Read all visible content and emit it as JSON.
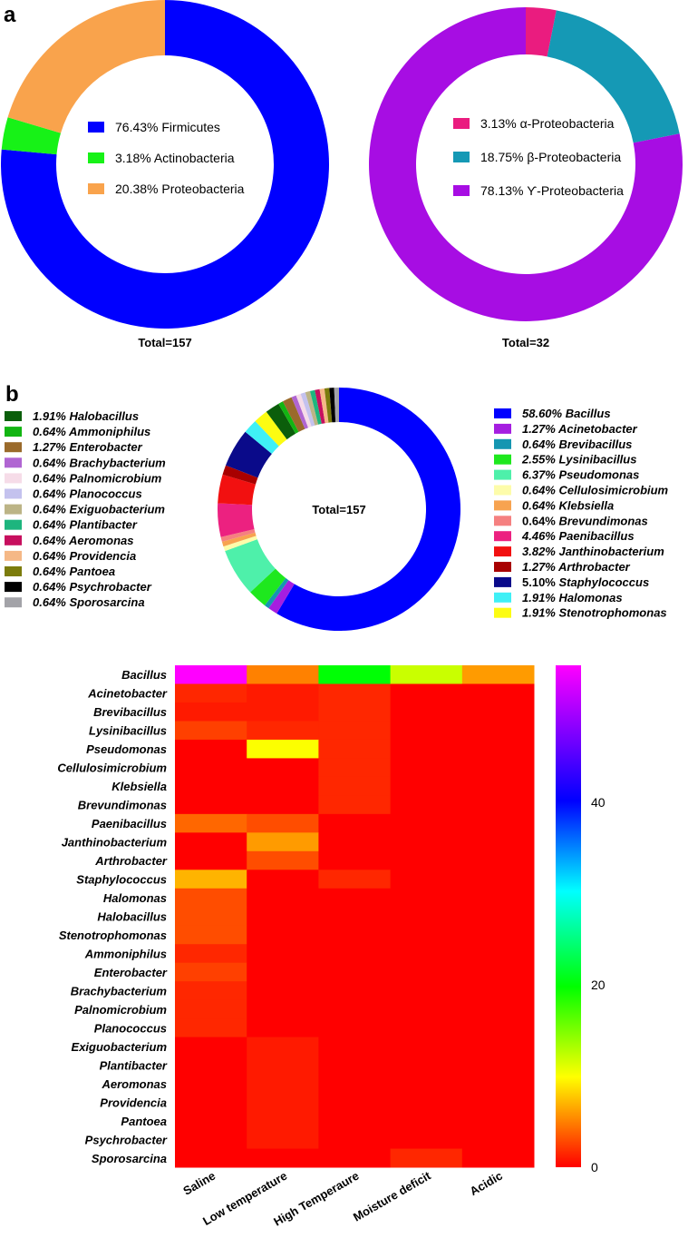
{
  "panels": {
    "a": "a",
    "b": "b"
  },
  "chart_data": [
    {
      "type": "pie",
      "subtype": "donut",
      "center_label": "",
      "total_label": "Total=157",
      "slices": [
        {
          "label": "Firmicutes",
          "value": 76.43,
          "pct_text": "76.43%",
          "color": "#0000ff"
        },
        {
          "label": "Actinobacteria",
          "value": 3.18,
          "pct_text": "3.18%",
          "color": "#17f217"
        },
        {
          "label": "Proteobacteria",
          "value": 20.38,
          "pct_text": "20.38%",
          "color": "#f9a34c"
        }
      ]
    },
    {
      "type": "pie",
      "subtype": "donut",
      "center_label": "",
      "total_label": "Total=32",
      "slices": [
        {
          "label": "α-Proteobacteria",
          "value": 3.13,
          "pct_text": "3.13%",
          "color": "#ea1c7f"
        },
        {
          "label": "β-Proteobacteria",
          "value": 18.75,
          "pct_text": "18.75%",
          "color": "#1599b5"
        },
        {
          "label": "Ƴ-Proteobacteria",
          "value": 78.13,
          "pct_text": "78.13%",
          "color": "#a70de3"
        }
      ]
    },
    {
      "type": "pie",
      "subtype": "donut",
      "center_label": "Total=157",
      "total_label": "",
      "slices": [
        {
          "label": "Bacillus",
          "value": 58.6,
          "pct_text": "58.60%",
          "color": "#0000ff"
        },
        {
          "label": "Acinetobacter",
          "value": 1.27,
          "pct_text": "1.27%",
          "color": "#a51ee0"
        },
        {
          "label": "Brevibacillus",
          "value": 0.64,
          "pct_text": "0.64%",
          "color": "#1596b1"
        },
        {
          "label": "Lysinibacillus",
          "value": 2.55,
          "pct_text": "2.55%",
          "color": "#1ee81e"
        },
        {
          "label": "Pseudomonas",
          "value": 6.37,
          "pct_text": "6.37%",
          "color": "#4ef0aa"
        },
        {
          "label": "Cellulosimicrobium",
          "value": 0.64,
          "pct_text": "0.64%",
          "color": "#fdfcaa"
        },
        {
          "label": "Klebsiella",
          "value": 0.64,
          "pct_text": "0.64%",
          "color": "#f7a350"
        },
        {
          "label": "Brevundimonas",
          "value": 0.64,
          "pct_text": "0.64%",
          "color": "#f58080"
        },
        {
          "label": "Paenibacillus",
          "value": 4.46,
          "pct_text": "4.46%",
          "color": "#ec2180"
        },
        {
          "label": "Janthinobacterium",
          "value": 3.82,
          "pct_text": "3.82%",
          "color": "#f21010"
        },
        {
          "label": "Arthrobacter",
          "value": 1.27,
          "pct_text": "1.27%",
          "color": "#a80000"
        },
        {
          "label": "Staphylococcus",
          "value": 5.1,
          "pct_text": "5.10%",
          "color": "#0a0a8a"
        },
        {
          "label": "Halomonas",
          "value": 1.91,
          "pct_text": "1.91%",
          "color": "#3ff0f6"
        },
        {
          "label": "Stenotrophomonas",
          "value": 1.91,
          "pct_text": "1.91%",
          "color": "#fcfc12"
        },
        {
          "label": "Halobacillus",
          "value": 1.91,
          "pct_text": "1.91%",
          "color": "#0b5e0b"
        },
        {
          "label": "Ammoniphilus",
          "value": 0.64,
          "pct_text": "0.64%",
          "color": "#12b512"
        },
        {
          "label": "Enterobacter",
          "value": 1.27,
          "pct_text": "1.27%",
          "color": "#9a6a2b"
        },
        {
          "label": "Brachybacterium",
          "value": 0.64,
          "pct_text": "0.64%",
          "color": "#b065d2"
        },
        {
          "label": "Palnomicrobium",
          "value": 0.64,
          "pct_text": "0.64%",
          "color": "#f6dce8"
        },
        {
          "label": "Planococcus",
          "value": 0.64,
          "pct_text": "0.64%",
          "color": "#c4c2ee"
        },
        {
          "label": "Exiguobacterium",
          "value": 0.64,
          "pct_text": "0.64%",
          "color": "#bcb486"
        },
        {
          "label": "Plantibacter",
          "value": 0.64,
          "pct_text": "0.64%",
          "color": "#1db57e"
        },
        {
          "label": "Aeromonas",
          "value": 0.64,
          "pct_text": "0.64%",
          "color": "#c70f5e"
        },
        {
          "label": "Providencia",
          "value": 0.64,
          "pct_text": "0.64%",
          "color": "#f5b886"
        },
        {
          "label": "Pantoea",
          "value": 0.64,
          "pct_text": "0.64%",
          "color": "#7c7c0c"
        },
        {
          "label": "Psychrobacter",
          "value": 0.64,
          "pct_text": "0.64%",
          "color": "#000000"
        },
        {
          "label": "Sporosarcina",
          "value": 0.64,
          "pct_text": "0.64%",
          "color": "#a3a3a8"
        }
      ],
      "legend_left": [
        "Halobacillus",
        "Ammoniphilus",
        "Enterobacter",
        "Brachybacterium",
        "Palnomicrobium",
        "Planococcus",
        "Exiguobacterium",
        "Plantibacter",
        "Aeromonas",
        "Providencia",
        "Pantoea",
        "Psychrobacter",
        "Sporosarcina"
      ],
      "legend_right": [
        "Bacillus",
        "Acinetobacter",
        "Brevibacillus",
        "Lysinibacillus",
        "Pseudomonas",
        "Cellulosimicrobium",
        "Klebsiella",
        "Brevundimonas",
        "Paenibacillus",
        "Janthinobacterium",
        "Arthrobacter",
        "Staphylococcus",
        "Halomonas",
        "Stenotrophomonas"
      ],
      "italic_pct": [
        "Bacillus",
        "Acinetobacter",
        "Brevibacillus",
        "Lysinibacillus",
        "Pseudomonas",
        "Cellulosimicrobium",
        "Klebsiella",
        "Paenibacillus",
        "Janthinobacterium",
        "Arthrobacter",
        "Halomonas",
        "Stenotrophomonas",
        "Halobacillus",
        "Ammoniphilus",
        "Enterobacter",
        "Brachybacterium",
        "Palnomicrobium",
        "Planococcus",
        "Exiguobacterium",
        "Plantibacter",
        "Aeromonas",
        "Providencia",
        "Pantoea",
        "Psychrobacter",
        "Sporosarcina"
      ]
    },
    {
      "type": "heatmap",
      "rows": [
        "Bacillus",
        "Acinetobacter",
        "Brevibacillus",
        "Lysinibacillus",
        "Pseudomonas",
        "Cellulosimicrobium",
        "Klebsiella",
        "Brevundimonas",
        "Paenibacillus",
        "Janthinobacterium",
        "Arthrobacter",
        "Staphylococcus",
        "Halomonas",
        "Halobacillus",
        "Stenotrophomonas",
        "Ammoniphilus",
        "Enterobacter",
        "Brachybacterium",
        "Palnomicrobium",
        "Planococcus",
        "Exiguobacterium",
        "Plantibacter",
        "Aeromonas",
        "Providencia",
        "Pantoea",
        "Psychrobacter",
        "Sporosarcina"
      ],
      "columns": [
        "Saline",
        "Low temperature",
        "High Temperaure",
        "Moisture deficit",
        "Acidic"
      ],
      "values": [
        [
          55,
          5,
          20,
          12,
          6
        ],
        [
          1.5,
          1,
          1.5,
          0,
          0
        ],
        [
          1,
          1,
          1.5,
          0,
          0
        ],
        [
          2.5,
          1.5,
          1.5,
          0,
          0
        ],
        [
          0,
          10,
          1.5,
          0,
          0
        ],
        [
          0,
          0,
          1.5,
          0,
          0
        ],
        [
          0,
          0,
          1.5,
          0,
          0
        ],
        [
          0,
          0,
          1.5,
          0,
          0
        ],
        [
          4,
          3,
          0,
          0,
          0
        ],
        [
          0,
          6,
          0,
          0,
          0
        ],
        [
          0,
          3,
          0,
          0,
          0
        ],
        [
          7,
          0,
          1.5,
          0,
          0
        ],
        [
          3,
          0,
          0,
          0,
          0
        ],
        [
          3,
          0,
          0,
          0,
          0
        ],
        [
          3,
          0,
          0,
          0,
          0
        ],
        [
          1.5,
          0,
          0,
          0,
          0
        ],
        [
          2.5,
          0,
          0,
          0,
          0
        ],
        [
          1.5,
          0,
          0,
          0,
          0
        ],
        [
          1.5,
          0,
          0,
          0,
          0
        ],
        [
          1.5,
          0,
          0,
          0,
          0
        ],
        [
          0,
          1,
          0,
          0,
          0
        ],
        [
          0,
          1,
          0,
          0,
          0
        ],
        [
          0,
          1,
          0,
          0,
          0
        ],
        [
          0,
          1,
          0,
          0,
          0
        ],
        [
          0,
          1,
          0,
          0,
          0
        ],
        [
          0,
          1,
          0,
          0,
          0
        ],
        [
          0,
          0,
          0,
          1.5,
          0
        ]
      ],
      "colorbar": {
        "min": 0,
        "max": 55,
        "ticks": [
          0,
          20,
          40
        ]
      }
    }
  ]
}
